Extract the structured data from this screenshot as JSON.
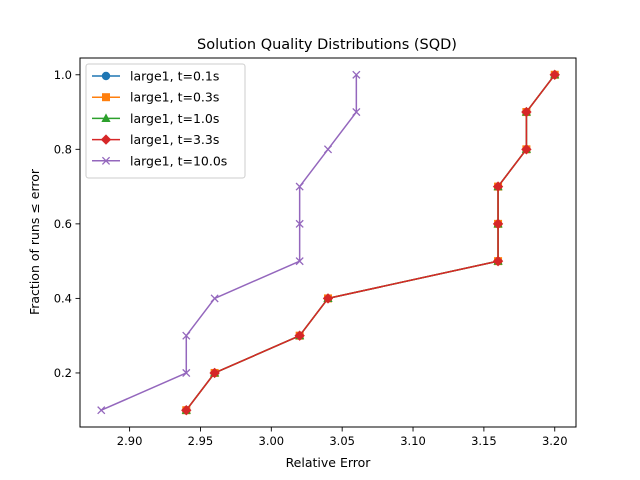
{
  "chart_data": {
    "type": "line",
    "title": "Solution Quality Distributions (SQD)",
    "xlabel": "Relative Error",
    "ylabel": "Fraction of runs ≤ error",
    "xlim": [
      2.865,
      3.215
    ],
    "ylim": [
      0.055,
      1.045
    ],
    "xticks": [
      2.9,
      2.95,
      3.0,
      3.05,
      3.1,
      3.15,
      3.2
    ],
    "xtick_labels": [
      "2.90",
      "2.95",
      "3.00",
      "3.05",
      "3.10",
      "3.15",
      "3.20"
    ],
    "yticks": [
      0.2,
      0.4,
      0.6,
      0.8,
      1.0
    ],
    "ytick_labels": [
      "0.2",
      "0.4",
      "0.6",
      "0.8",
      "1.0"
    ],
    "grid": false,
    "legend": "top-left",
    "series": [
      {
        "name": "large1, t=0.1s",
        "color": "#1f77b4",
        "marker": "circle",
        "x": [
          2.94,
          2.96,
          3.02,
          3.04,
          3.16,
          3.16,
          3.16,
          3.18,
          3.18,
          3.2
        ],
        "y": [
          0.1,
          0.2,
          0.3,
          0.4,
          0.5,
          0.6,
          0.7,
          0.8,
          0.9,
          1.0
        ]
      },
      {
        "name": "large1, t=0.3s",
        "color": "#ff7f0e",
        "marker": "square",
        "x": [
          2.94,
          2.96,
          3.02,
          3.04,
          3.16,
          3.16,
          3.16,
          3.18,
          3.18,
          3.2
        ],
        "y": [
          0.1,
          0.2,
          0.3,
          0.4,
          0.5,
          0.6,
          0.7,
          0.8,
          0.9,
          1.0
        ]
      },
      {
        "name": "large1, t=1.0s",
        "color": "#2ca02c",
        "marker": "triangle",
        "x": [
          2.94,
          2.96,
          3.02,
          3.04,
          3.16,
          3.16,
          3.16,
          3.18,
          3.18,
          3.2
        ],
        "y": [
          0.1,
          0.2,
          0.3,
          0.4,
          0.5,
          0.6,
          0.7,
          0.8,
          0.9,
          1.0
        ]
      },
      {
        "name": "large1, t=3.3s",
        "color": "#d62728",
        "marker": "diamond",
        "x": [
          2.94,
          2.96,
          3.02,
          3.04,
          3.16,
          3.16,
          3.16,
          3.18,
          3.18,
          3.2
        ],
        "y": [
          0.1,
          0.2,
          0.3,
          0.4,
          0.5,
          0.6,
          0.7,
          0.8,
          0.9,
          1.0
        ]
      },
      {
        "name": "large1, t=10.0s",
        "color": "#9467bd",
        "marker": "x",
        "x": [
          2.88,
          2.94,
          2.94,
          2.96,
          3.02,
          3.02,
          3.02,
          3.04,
          3.06,
          3.06
        ],
        "y": [
          0.1,
          0.2,
          0.3,
          0.4,
          0.5,
          0.6,
          0.7,
          0.8,
          0.9,
          1.0
        ]
      }
    ]
  }
}
